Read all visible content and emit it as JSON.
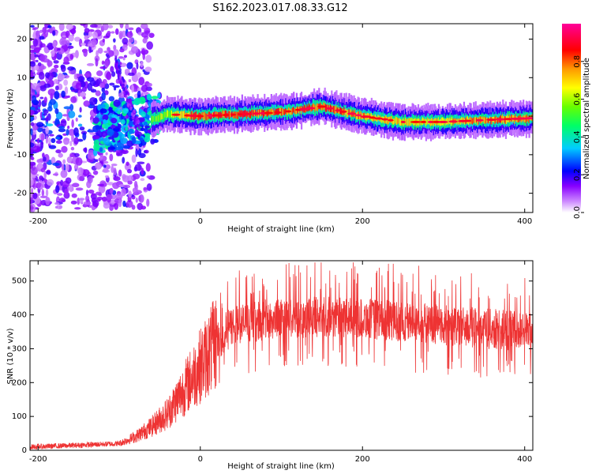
{
  "title": "S162.2023.017.08.33.G12",
  "chart_data": [
    {
      "type": "heatmap",
      "xlabel": "Height of straight line (km)",
      "ylabel": "Frequency (Hz)",
      "xlim": [
        -210,
        410
      ],
      "ylim": [
        -25,
        24
      ],
      "xticks": [
        -200,
        0,
        200,
        400
      ],
      "yticks": [
        -20,
        -10,
        0,
        10,
        20
      ],
      "colorbar": {
        "label": "Normalized spectral amplitude",
        "range": [
          0,
          1
        ],
        "ticks": [
          "0.0",
          "0.2",
          "0.4",
          "0.6",
          "0.8"
        ],
        "colors": [
          "#ffffff",
          "#8800ff",
          "#0000ff",
          "#00ffff",
          "#00ff00",
          "#ffff00",
          "#ff8800",
          "#ff0000",
          "#ff00aa"
        ]
      },
      "ridge": [
        {
          "h": -60,
          "f": -1,
          "a": 0.55
        },
        {
          "h": -40,
          "f": 0.5,
          "a": 0.6
        },
        {
          "h": 0,
          "f": 0,
          "a": 0.85
        },
        {
          "h": 50,
          "f": 0.5,
          "a": 0.85
        },
        {
          "h": 100,
          "f": 1,
          "a": 0.8
        },
        {
          "h": 150,
          "f": 2.5,
          "a": 0.85
        },
        {
          "h": 200,
          "f": 0,
          "a": 0.75
        },
        {
          "h": 250,
          "f": -1.5,
          "a": 0.7
        },
        {
          "h": 300,
          "f": -1.5,
          "a": 0.7
        },
        {
          "h": 350,
          "f": -1,
          "a": 0.8
        },
        {
          "h": 410,
          "f": -0.5,
          "a": 0.75
        }
      ]
    },
    {
      "type": "line",
      "xlabel": "Height of straight line (km)",
      "ylabel": "SNR (10 * v/v)",
      "xlim": [
        -210,
        410
      ],
      "ylim": [
        0,
        560
      ],
      "xticks": [
        -200,
        0,
        200,
        400
      ],
      "yticks": [
        0,
        100,
        200,
        300,
        400,
        500
      ],
      "color": "#ee3333",
      "series_envelope": [
        {
          "h": -210,
          "snr": 10
        },
        {
          "h": -150,
          "snr": 15
        },
        {
          "h": -100,
          "snr": 20
        },
        {
          "h": -80,
          "snr": 40
        },
        {
          "h": -60,
          "snr": 70
        },
        {
          "h": -40,
          "snr": 110
        },
        {
          "h": -20,
          "snr": 180
        },
        {
          "h": 0,
          "snr": 250
        },
        {
          "h": 20,
          "snr": 320
        },
        {
          "h": 40,
          "snr": 370
        },
        {
          "h": 80,
          "snr": 385
        },
        {
          "h": 150,
          "snr": 395
        },
        {
          "h": 200,
          "snr": 390
        },
        {
          "h": 250,
          "snr": 380
        },
        {
          "h": 300,
          "snr": 370
        },
        {
          "h": 350,
          "snr": 360
        },
        {
          "h": 410,
          "snr": 350
        }
      ]
    }
  ]
}
